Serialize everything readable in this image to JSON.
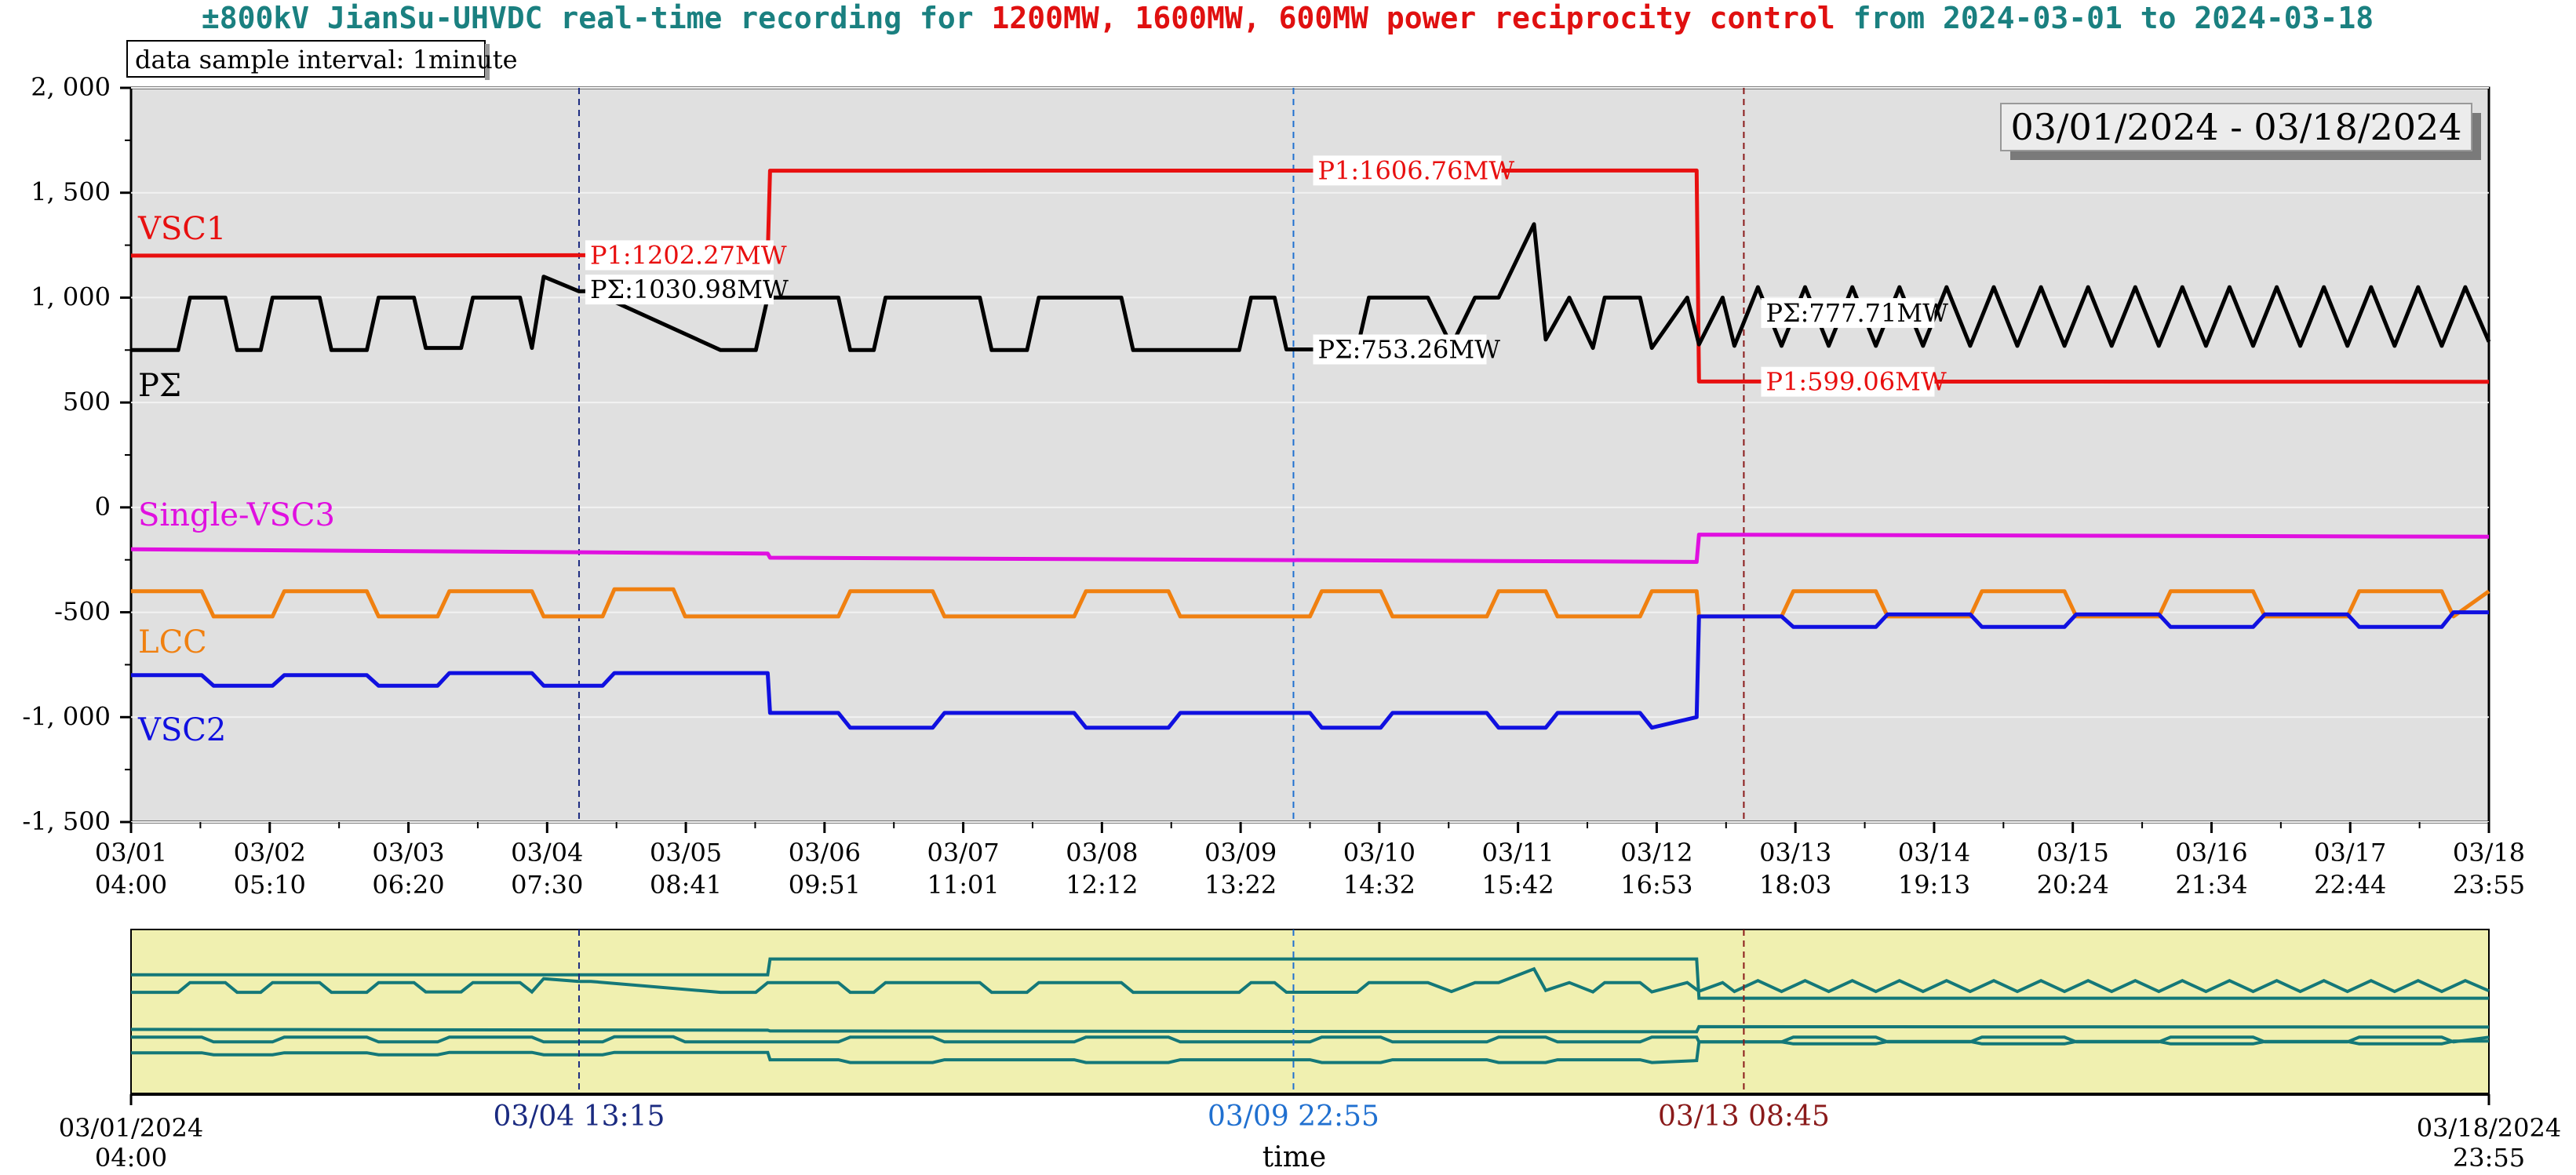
{
  "title": {
    "prefix": "±800kV JianSu-UHVDC real-time recording for ",
    "highlight": "1200MW, 1600MW, 600MW power reciprocity control",
    "suffix": " from 2024-03-01 to 2024-03-18",
    "prefix_color": "#1a8080",
    "highlight_color": "#e01010",
    "suffix_color": "#1a8080"
  },
  "sample_note": "data sample interval: 1minute",
  "date_range_box": "03/01/2024 - 03/18/2024",
  "chart_data": {
    "type": "line",
    "ylim": [
      -1500,
      2000
    ],
    "yticks": [
      {
        "value": 2000,
        "label": "2, 000"
      },
      {
        "value": 1500,
        "label": "1, 500"
      },
      {
        "value": 1000,
        "label": "1, 000"
      },
      {
        "value": 500,
        "label": "500"
      },
      {
        "value": 0,
        "label": "0"
      },
      {
        "value": -500,
        "label": "-500"
      },
      {
        "value": -1000,
        "label": "-1, 000"
      },
      {
        "value": -1500,
        "label": "-1, 500"
      }
    ],
    "xlim": [
      0,
      1
    ],
    "xticks": [
      {
        "date": "03/01",
        "time": "04:00"
      },
      {
        "date": "03/02",
        "time": "05:10"
      },
      {
        "date": "03/03",
        "time": "06:20"
      },
      {
        "date": "03/04",
        "time": "07:30"
      },
      {
        "date": "03/05",
        "time": "08:41"
      },
      {
        "date": "03/06",
        "time": "09:51"
      },
      {
        "date": "03/07",
        "time": "11:01"
      },
      {
        "date": "03/08",
        "time": "12:12"
      },
      {
        "date": "03/09",
        "time": "13:22"
      },
      {
        "date": "03/10",
        "time": "14:32"
      },
      {
        "date": "03/11",
        "time": "15:42"
      },
      {
        "date": "03/12",
        "time": "16:53"
      },
      {
        "date": "03/13",
        "time": "18:03"
      },
      {
        "date": "03/14",
        "time": "19:13"
      },
      {
        "date": "03/15",
        "time": "20:24"
      },
      {
        "date": "03/16",
        "time": "21:34"
      },
      {
        "date": "03/17",
        "time": "22:44"
      },
      {
        "date": "03/18",
        "time": "23:55"
      }
    ],
    "grid": true,
    "series": [
      {
        "name": "VSC1",
        "color": "#e81010",
        "x": [
          0,
          0.19,
          0.27,
          0.271,
          0.664,
          0.665,
          1.0
        ],
        "y": [
          1200,
          1202,
          1202,
          1605,
          1606,
          600,
          599
        ]
      },
      {
        "name": "PΣ",
        "color": "#000000",
        "x": [
          0,
          0.02,
          0.025,
          0.04,
          0.045,
          0.055,
          0.06,
          0.08,
          0.085,
          0.1,
          0.105,
          0.12,
          0.125,
          0.14,
          0.145,
          0.165,
          0.17,
          0.175,
          0.19,
          0.195,
          0.25,
          0.265,
          0.27,
          0.3,
          0.305,
          0.315,
          0.32,
          0.36,
          0.365,
          0.38,
          0.385,
          0.42,
          0.425,
          0.47,
          0.475,
          0.485,
          0.49,
          0.52,
          0.525,
          0.55,
          0.56,
          0.57,
          0.58,
          0.595,
          0.6,
          0.61,
          0.62,
          0.625,
          0.64,
          0.645,
          0.66,
          0.665,
          0.675,
          0.68,
          0.69,
          0.7,
          0.71,
          0.72,
          0.73,
          0.74,
          0.75,
          0.76,
          0.77,
          0.78,
          0.79,
          0.8,
          0.81,
          0.82,
          0.83,
          0.84,
          0.85,
          0.86,
          0.87,
          0.88,
          0.89,
          0.9,
          0.91,
          0.92,
          0.93,
          0.94,
          0.95,
          0.96,
          0.97,
          0.98,
          0.99,
          1.0
        ],
        "y": [
          750,
          750,
          1000,
          1000,
          750,
          750,
          1000,
          1000,
          750,
          750,
          1000,
          1000,
          760,
          760,
          1000,
          1000,
          760,
          1100,
          1030,
          1031,
          750,
          750,
          1000,
          1000,
          750,
          750,
          1000,
          1000,
          750,
          750,
          1000,
          1000,
          750,
          750,
          1000,
          1000,
          753,
          753,
          1000,
          1000,
          770,
          1000,
          1000,
          1350,
          800,
          1000,
          760,
          1000,
          1000,
          760,
          1000,
          777,
          1000,
          770,
          1050,
          770,
          1050,
          770,
          1050,
          770,
          1050,
          770,
          1050,
          770,
          1050,
          770,
          1050,
          770,
          1050,
          770,
          1050,
          770,
          1050,
          770,
          1050,
          770,
          1050,
          770,
          1050,
          770,
          1050,
          770,
          1050,
          770,
          1050,
          790
        ]
      },
      {
        "name": "Single-VSC3",
        "color": "#e010e0",
        "x": [
          0,
          0.27,
          0.271,
          0.664,
          0.665,
          1.0
        ],
        "y": [
          -200,
          -220,
          -240,
          -260,
          -130,
          -140
        ]
      },
      {
        "name": "LCC",
        "color": "#f08010",
        "x": [
          0,
          0.03,
          0.035,
          0.06,
          0.065,
          0.1,
          0.105,
          0.13,
          0.135,
          0.17,
          0.175,
          0.2,
          0.205,
          0.23,
          0.235,
          0.3,
          0.305,
          0.34,
          0.345,
          0.4,
          0.405,
          0.44,
          0.445,
          0.5,
          0.505,
          0.53,
          0.535,
          0.575,
          0.58,
          0.6,
          0.605,
          0.64,
          0.645,
          0.664,
          0.665,
          0.7,
          0.705,
          0.74,
          0.745,
          0.78,
          0.785,
          0.82,
          0.825,
          0.86,
          0.865,
          0.9,
          0.905,
          0.94,
          0.945,
          0.98,
          0.985,
          1.0
        ],
        "y": [
          -400,
          -400,
          -520,
          -520,
          -400,
          -400,
          -520,
          -520,
          -400,
          -400,
          -520,
          -520,
          -390,
          -390,
          -520,
          -520,
          -400,
          -400,
          -520,
          -520,
          -400,
          -400,
          -520,
          -520,
          -400,
          -400,
          -520,
          -520,
          -400,
          -400,
          -520,
          -520,
          -400,
          -400,
          -520,
          -520,
          -400,
          -400,
          -520,
          -520,
          -400,
          -400,
          -520,
          -520,
          -400,
          -400,
          -520,
          -520,
          -400,
          -400,
          -520,
          -400
        ]
      },
      {
        "name": "VSC2",
        "color": "#1010e0",
        "x": [
          0,
          0.03,
          0.035,
          0.06,
          0.065,
          0.1,
          0.105,
          0.13,
          0.135,
          0.17,
          0.175,
          0.2,
          0.205,
          0.27,
          0.271,
          0.3,
          0.305,
          0.34,
          0.345,
          0.4,
          0.405,
          0.44,
          0.445,
          0.5,
          0.505,
          0.53,
          0.535,
          0.575,
          0.58,
          0.6,
          0.605,
          0.64,
          0.645,
          0.664,
          0.665,
          0.7,
          0.705,
          0.74,
          0.745,
          0.78,
          0.785,
          0.82,
          0.825,
          0.86,
          0.865,
          0.9,
          0.905,
          0.94,
          0.945,
          0.98,
          0.985,
          1.0
        ],
        "y": [
          -800,
          -800,
          -850,
          -850,
          -800,
          -800,
          -850,
          -850,
          -790,
          -790,
          -850,
          -850,
          -790,
          -790,
          -980,
          -980,
          -1050,
          -1050,
          -980,
          -980,
          -1050,
          -1050,
          -980,
          -980,
          -1050,
          -1050,
          -980,
          -980,
          -1050,
          -1050,
          -980,
          -980,
          -1050,
          -1000,
          -520,
          -520,
          -570,
          -570,
          -510,
          -510,
          -570,
          -570,
          -510,
          -510,
          -570,
          -570,
          -510,
          -510,
          -570,
          -570,
          -500,
          -500
        ]
      }
    ],
    "annotations": [
      {
        "series": "VSC1",
        "x": 0.19,
        "y": 1202,
        "text": "P1:1202.27MW"
      },
      {
        "series": "PΣ",
        "x": 0.19,
        "y": 1031,
        "text": "PΣ:1030.98MW"
      },
      {
        "series": "VSC1",
        "x": 0.5,
        "y": 1606,
        "text": "P1:1606.76MW"
      },
      {
        "series": "PΣ",
        "x": 0.5,
        "y": 753,
        "text": "PΣ:753.26MW"
      },
      {
        "series": "PΣ",
        "x": 0.69,
        "y": 777,
        "text": "PΣ:777.71MW"
      },
      {
        "series": "VSC1",
        "x": 0.69,
        "y": 599,
        "text": "P1:599.06MW"
      }
    ],
    "vlines": [
      {
        "x": 0.19,
        "color": "#1a2a80",
        "label": "03/04 13:15"
      },
      {
        "x": 0.493,
        "color": "#2070d0",
        "label": "03/09 22:55"
      },
      {
        "x": 0.684,
        "color": "#8a1a1a",
        "label": "03/13 08:45"
      }
    ],
    "overview": {
      "start_label": [
        "03/01/2024",
        "04:00"
      ],
      "end_label": [
        "03/18/2024",
        "23:55"
      ],
      "xlabel": "time",
      "line_color": "#147878",
      "background": "#f0f0b0"
    }
  }
}
